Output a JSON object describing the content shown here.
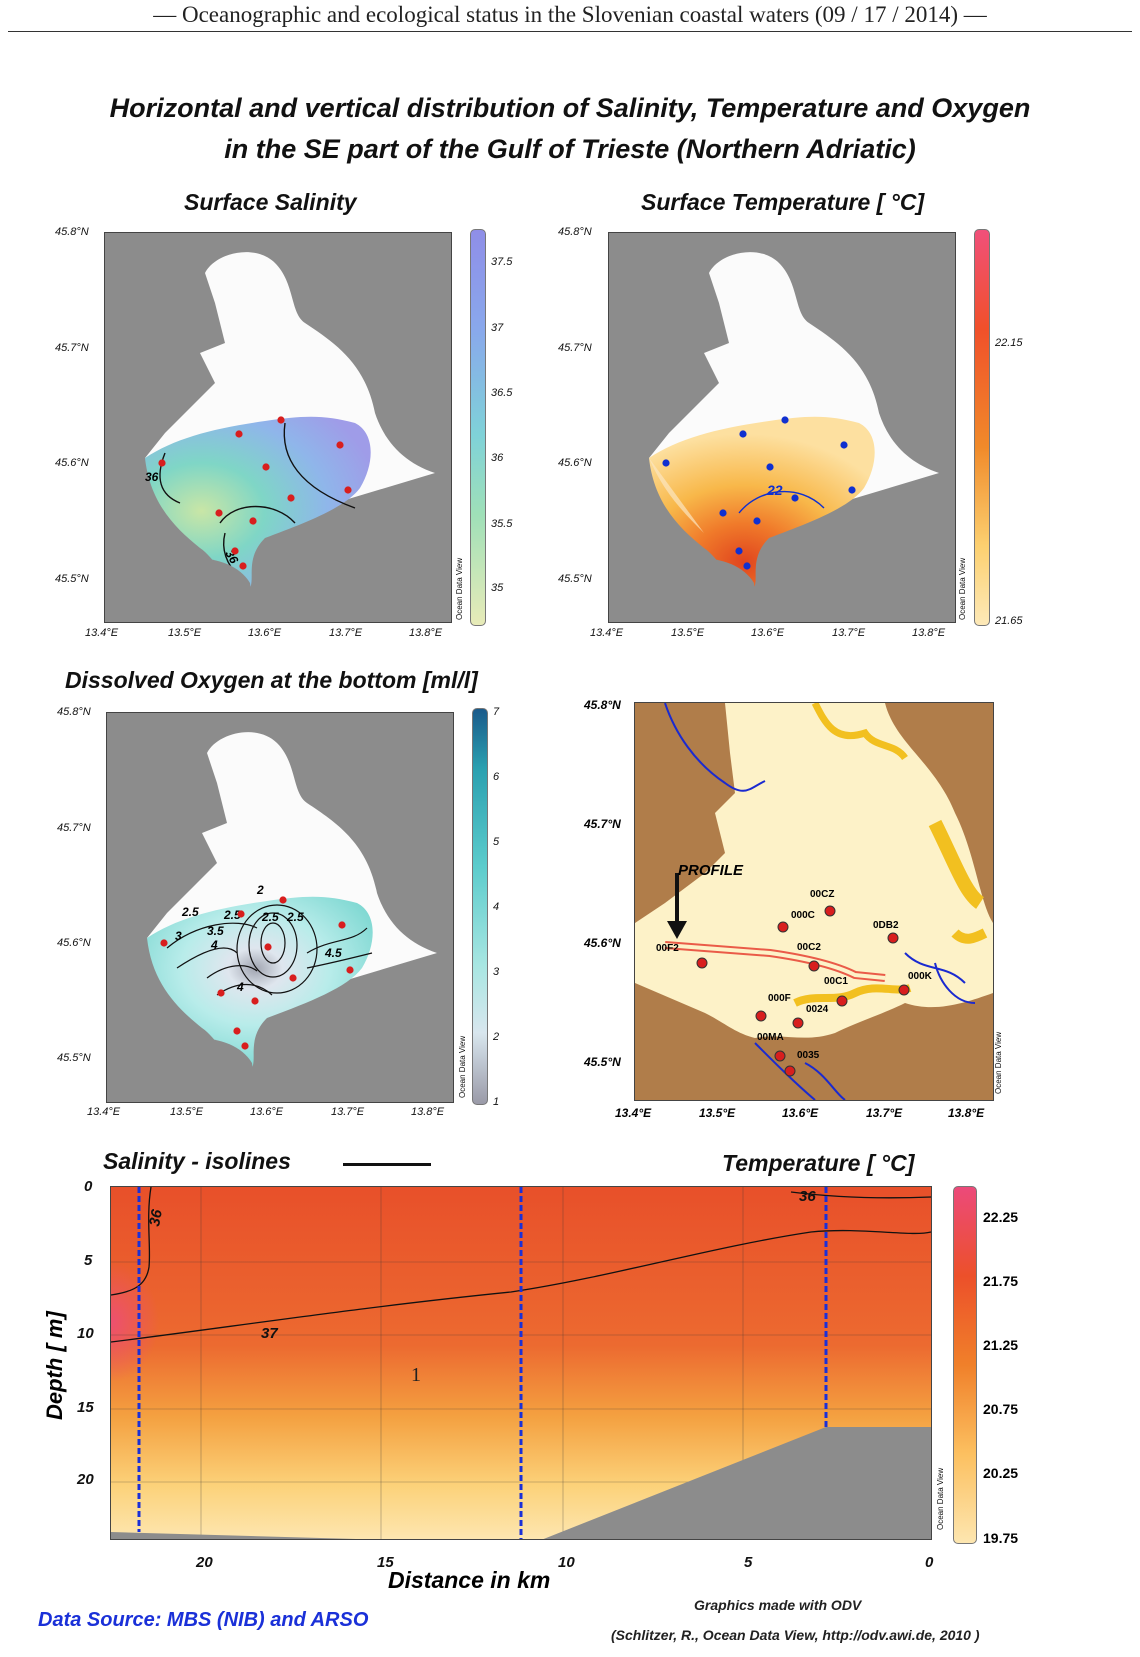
{
  "header": {
    "text": "— Oceanographic and ecological status in the Slovenian coastal waters (09 / 17 / 2014) —"
  },
  "figure": {
    "title_line1": "Horizontal and vertical distribution of Salinity, Temperature and Oxygen",
    "title_line2": "in the SE part of the Gulf of Trieste (Northern Adriatic)"
  },
  "panels": {
    "salinity": {
      "title": "Surface Salinity",
      "colorbar": [
        "37.5",
        "37",
        "36.5",
        "36",
        "35.5",
        "35"
      ],
      "isolines": [
        "36",
        "36"
      ]
    },
    "temperature": {
      "title": "Surface Temperature [ °C]",
      "colorbar": [
        "22.15",
        "21.65"
      ],
      "isolines": [
        "22"
      ]
    },
    "oxygen": {
      "title": "Dissolved Oxygen at the bottom [ml/l]",
      "colorbar": [
        "7",
        "6",
        "5",
        "4",
        "3",
        "2",
        "1"
      ],
      "isolines": [
        "2",
        "2.5",
        "2.5",
        "3",
        "3.5",
        "2.5",
        "4",
        "4.5",
        "4",
        "2.5"
      ]
    },
    "stations": {
      "profile_label": "PROFILE",
      "labels": [
        "00CZ",
        "000C",
        "0DB2",
        "00F2",
        "00C2",
        "000K",
        "00C1",
        "000F",
        "0024",
        "00MA",
        "0035"
      ]
    },
    "section": {
      "salinity_label": "Salinity - isolines",
      "temperature_label": "Temperature [ °C]",
      "ylabel": "Depth [ m]",
      "xlabel": "Distance in km",
      "yticks": [
        "0",
        "5",
        "10",
        "15",
        "20"
      ],
      "xticks": [
        "20",
        "15",
        "10",
        "5",
        "0"
      ],
      "colorbar": [
        "22.25",
        "21.75",
        "21.25",
        "20.75",
        "20.25",
        "19.75"
      ],
      "isolines": [
        "36",
        "37",
        "36"
      ],
      "marker": "1"
    }
  },
  "axes": {
    "lat": [
      "45.8°N",
      "45.7°N",
      "45.6°N",
      "45.5°N"
    ],
    "lon": [
      "13.4°E",
      "13.5°E",
      "13.6°E",
      "13.7°E",
      "13.8°E"
    ]
  },
  "credits": {
    "data_source": "Data Source: MBS (NIB) and ARSO",
    "graphics": "Graphics made with ODV",
    "citation": "(Schlitzer, R., Ocean Data View, http://odv.awi.de, 2010 )",
    "watermark": "Ocean Data View"
  },
  "colors": {
    "stations_red": "#d81e1e",
    "stations_blue": "#1030d0",
    "land_gray": "#8c8c8c",
    "river_blue": "#1a2ad0"
  }
}
